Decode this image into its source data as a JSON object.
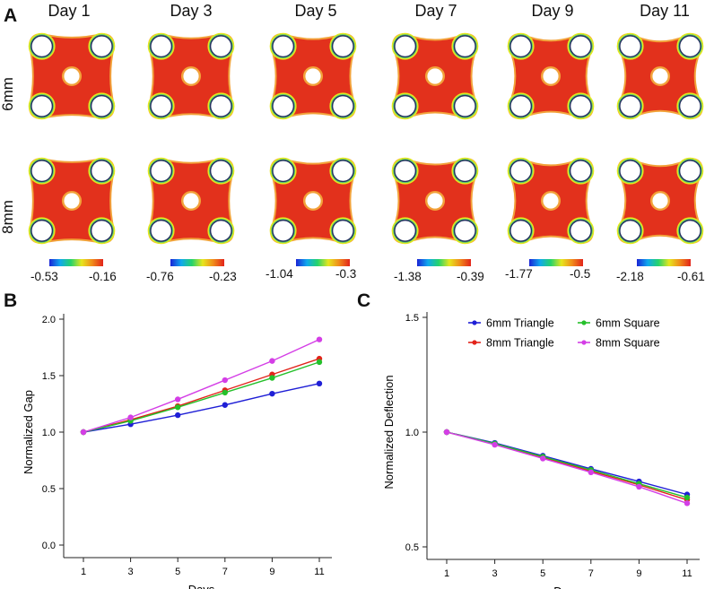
{
  "panelA": {
    "letter": "A",
    "days": [
      "Day 1",
      "Day 3",
      "Day 5",
      "Day 7",
      "Day 9",
      "Day 11"
    ],
    "rows": [
      "6mm",
      "8mm"
    ],
    "colorbars": [
      {
        "min": "-0.53",
        "max": "-0.16"
      },
      {
        "min": "-0.76",
        "max": "-0.23"
      },
      {
        "min": "-1.04",
        "max": "-0.3"
      },
      {
        "min": "-1.38",
        "max": "-0.39"
      },
      {
        "min": "-1.77",
        "max": "-0.5"
      },
      {
        "min": "-2.18",
        "max": "-0.61"
      }
    ],
    "colors": {
      "fill": "#e2311c",
      "edge": "#f2a23a",
      "hole_ring": "#24325f"
    }
  },
  "panelB": {
    "letter": "B"
  },
  "panelC": {
    "letter": "C"
  },
  "chart_data": [
    {
      "type": "line",
      "panel": "B",
      "title": "",
      "xlabel": "Days",
      "ylabel": "Normalized Gap",
      "x": [
        1,
        3,
        5,
        7,
        9,
        11
      ],
      "xticks": [
        "1",
        "3",
        "5",
        "7",
        "9",
        "11"
      ],
      "yticks": [
        "0.0",
        "0.5",
        "1.0",
        "1.5",
        "2.0"
      ],
      "ylim": [
        0,
        2.0
      ],
      "series": [
        {
          "name": "6mm Triangle",
          "color": "#1f1fd6",
          "values": [
            1.0,
            1.07,
            1.15,
            1.24,
            1.34,
            1.43
          ]
        },
        {
          "name": "8mm Triangle",
          "color": "#e2231a",
          "values": [
            1.0,
            1.11,
            1.23,
            1.37,
            1.51,
            1.65
          ]
        },
        {
          "name": "6mm Square",
          "color": "#25c02a",
          "values": [
            1.0,
            1.1,
            1.22,
            1.35,
            1.48,
            1.62
          ]
        },
        {
          "name": "8mm Square",
          "color": "#d43ee6",
          "values": [
            1.0,
            1.13,
            1.29,
            1.46,
            1.63,
            1.82
          ]
        }
      ]
    },
    {
      "type": "line",
      "panel": "C",
      "title": "",
      "xlabel": "Days",
      "ylabel": "Normalized Deflection",
      "x": [
        1,
        3,
        5,
        7,
        9,
        11
      ],
      "xticks": [
        "1",
        "3",
        "5",
        "7",
        "9",
        "11"
      ],
      "yticks": [
        "0.5",
        "1.0",
        "1.5"
      ],
      "ylim": [
        0.5,
        1.5
      ],
      "legend_position": "top",
      "series": [
        {
          "name": "6mm Triangle",
          "color": "#1f1fd6",
          "values": [
            1.0,
            0.953,
            0.897,
            0.84,
            0.785,
            0.728
          ]
        },
        {
          "name": "8mm Triangle",
          "color": "#e2231a",
          "values": [
            1.0,
            0.948,
            0.89,
            0.83,
            0.77,
            0.705
          ]
        },
        {
          "name": "6mm Square",
          "color": "#25c02a",
          "values": [
            1.0,
            0.95,
            0.893,
            0.835,
            0.775,
            0.715
          ]
        },
        {
          "name": "8mm Square",
          "color": "#d43ee6",
          "values": [
            1.0,
            0.945,
            0.885,
            0.825,
            0.762,
            0.69
          ]
        }
      ]
    }
  ]
}
